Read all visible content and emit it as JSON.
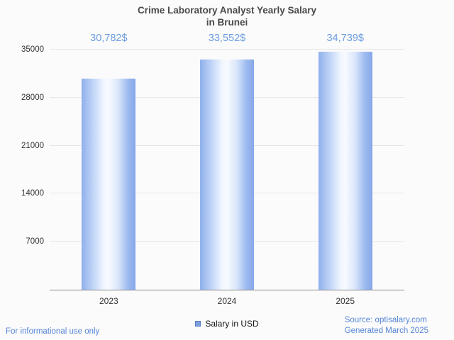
{
  "header": {
    "title_line1": "Crime Laboratory Analyst Yearly Salary",
    "title_line2": "in Brunei"
  },
  "chart_data": {
    "type": "bar",
    "title": "Crime Laboratory Analyst Yearly Salary in Brunei",
    "categories": [
      "2023",
      "2024",
      "2025"
    ],
    "values": [
      30782,
      33552,
      34739
    ],
    "value_labels": [
      "30,782$",
      "33,552$",
      "34,739$"
    ],
    "ylim": [
      0,
      35000
    ],
    "yticks": [
      7000,
      14000,
      21000,
      28000,
      35000
    ],
    "grid": true,
    "xlabel": "",
    "ylabel": "",
    "legend_entries": [
      "Salary in USD"
    ],
    "legend_position": "bottom",
    "bar_color": "#88a9e8"
  },
  "legend": {
    "label": "Salary in USD",
    "swatch_color": "#7b9ede"
  },
  "footer": {
    "left": "For informational use only",
    "source": "Source: optisalary.com",
    "generated": "Generated March 2025"
  },
  "colors": {
    "value_label": "#6a9be0",
    "footer_text": "#5585d6",
    "tick_label": "#333333"
  }
}
